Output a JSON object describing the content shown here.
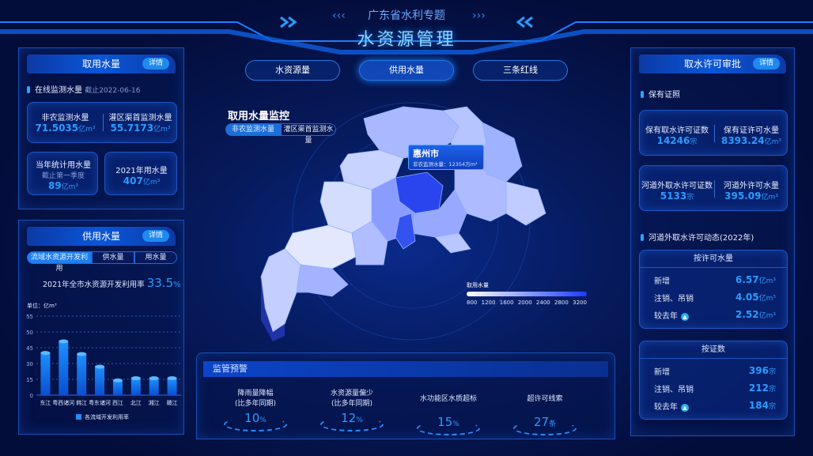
{
  "header": {
    "subtitle": "广东省水利专题",
    "title": "水资源管理"
  },
  "tabs": [
    {
      "label": "水资源量",
      "active": false
    },
    {
      "label": "供用水量",
      "active": true
    },
    {
      "label": "三条红线",
      "active": false
    }
  ],
  "left_top": {
    "title": "取用水量",
    "detail": "详情",
    "section": "在线监测水量",
    "date": "截止2022-06-16",
    "nonagri": {
      "label": "非农监测水量",
      "value": "71.5035",
      "unit": "亿m³"
    },
    "irrigation": {
      "label": "灌区渠首监测水量",
      "value": "55.7173",
      "unit": "亿m³"
    },
    "year_stat": {
      "label": "当年统计用水量",
      "note": "截止第一季度",
      "value": "89",
      "unit": "亿m³"
    },
    "y2021": {
      "label": "2021年用水量",
      "value": "407",
      "unit": "亿m³"
    }
  },
  "left_bottom": {
    "title": "供用水量",
    "detail": "详情",
    "segments": [
      "流域水资源开发利用",
      "供水量",
      "用水量"
    ],
    "rate_label": "2021年全市水资源开发利用率",
    "rate_value": "33.5",
    "rate_unit": "%"
  },
  "chart_data": {
    "type": "bar",
    "ylabel": "单位：亿m³",
    "yticks": [
      0,
      15,
      30,
      45,
      50,
      55
    ],
    "categories": [
      "东江",
      "粤西诸河",
      "韩江",
      "粤东诸河",
      "西江",
      "北江",
      "湘江",
      "赣江"
    ],
    "series": [
      {
        "name": "各流域开发利用率",
        "values": [
          40,
          47,
          39,
          27,
          14,
          16,
          16,
          16
        ]
      }
    ],
    "color": "#1e8fff",
    "grid": true,
    "legend": "bottom"
  },
  "map": {
    "title": "取用水量监控",
    "toggles": [
      "非农监测水量",
      "灌区渠首监测水量"
    ],
    "tooltip": {
      "city": "惠州市",
      "label": "非农监测水量：",
      "value": "12354",
      "unit": "万m³"
    },
    "legend": {
      "title": "取用水量",
      "ticks": [
        "800",
        "1200",
        "1600",
        "2000",
        "2400",
        "2800",
        "3200"
      ],
      "colors": [
        "#ffffff",
        "#1a3cff"
      ]
    }
  },
  "warning": {
    "title": "监管预警",
    "items": [
      {
        "label": "降雨量降幅",
        "note": "(比多年同期)",
        "value": "10",
        "unit": "%"
      },
      {
        "label": "水资源量偏少",
        "note": "(比多年同期)",
        "value": "12",
        "unit": "%"
      },
      {
        "label": "水功能区水质超标",
        "note": "",
        "value": "15",
        "unit": "%"
      },
      {
        "label": "超许可线索",
        "note": "",
        "value": "27",
        "unit": "条"
      }
    ]
  },
  "right": {
    "title": "取水许可审批",
    "detail": "详情",
    "section1": "保有证照",
    "c1": {
      "label": "保有取水许可证数",
      "value": "14246",
      "unit": "宗"
    },
    "c2": {
      "label": "保有证许可水量",
      "value": "8393.24",
      "unit": "亿m³"
    },
    "c3": {
      "label": "河道外取水许可证数",
      "value": "5133",
      "unit": "宗"
    },
    "c4": {
      "label": "河道外许可水量",
      "value": "395.09",
      "unit": "亿m³"
    },
    "section2": "河道外取水许可动态(2022年)",
    "by_volume": {
      "title": "按许可水量",
      "rows": [
        {
          "label": "新增",
          "value": "6.57",
          "unit": "亿m³"
        },
        {
          "label": "注销、吊销",
          "value": "4.05",
          "unit": "亿m³"
        },
        {
          "label": "较去年",
          "value": "2.52",
          "unit": "亿m³",
          "trend": "up"
        }
      ]
    },
    "by_count": {
      "title": "按证数",
      "rows": [
        {
          "label": "新增",
          "value": "396",
          "unit": "宗"
        },
        {
          "label": "注销、吊销",
          "value": "212",
          "unit": "宗"
        },
        {
          "label": "较去年",
          "value": "184",
          "unit": "宗",
          "trend": "up"
        }
      ]
    }
  }
}
